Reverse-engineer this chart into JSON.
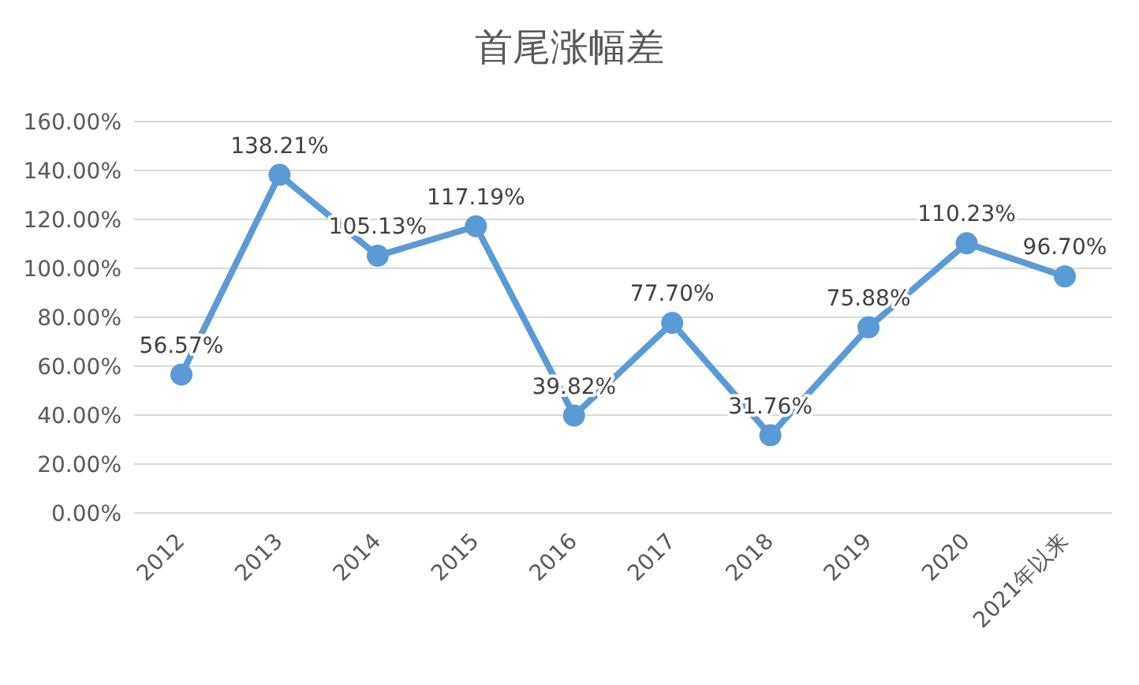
{
  "chart_data": {
    "type": "line",
    "title": "首尾涨幅差",
    "categories": [
      "2012",
      "2013",
      "2014",
      "2015",
      "2016",
      "2017",
      "2018",
      "2019",
      "2020",
      "2021年以来"
    ],
    "series": [
      {
        "color": "#5b9bd5",
        "values": [
          56.57,
          138.21,
          105.13,
          117.19,
          39.82,
          77.7,
          31.76,
          75.88,
          110.23,
          96.7
        ],
        "value_labels": [
          "56.57%",
          "138.21%",
          "105.13%",
          "117.19%",
          "39.82%",
          "77.70%",
          "31.76%",
          "75.88%",
          "110.23%",
          "96.70%"
        ]
      }
    ],
    "ylim": [
      0,
      160
    ],
    "yticks": [
      {
        "value": 0,
        "label": "0.00%"
      },
      {
        "value": 20,
        "label": "20.00%"
      },
      {
        "value": 40,
        "label": "40.00%"
      },
      {
        "value": 60,
        "label": "60.00%"
      },
      {
        "value": 80,
        "label": "80.00%"
      },
      {
        "value": 100,
        "label": "100.00%"
      },
      {
        "value": 120,
        "label": "120.00%"
      },
      {
        "value": 140,
        "label": "140.00%"
      },
      {
        "value": 160,
        "label": "160.00%"
      }
    ],
    "grid": "y",
    "marker": "circle",
    "line_style": "solid",
    "legend": false
  }
}
